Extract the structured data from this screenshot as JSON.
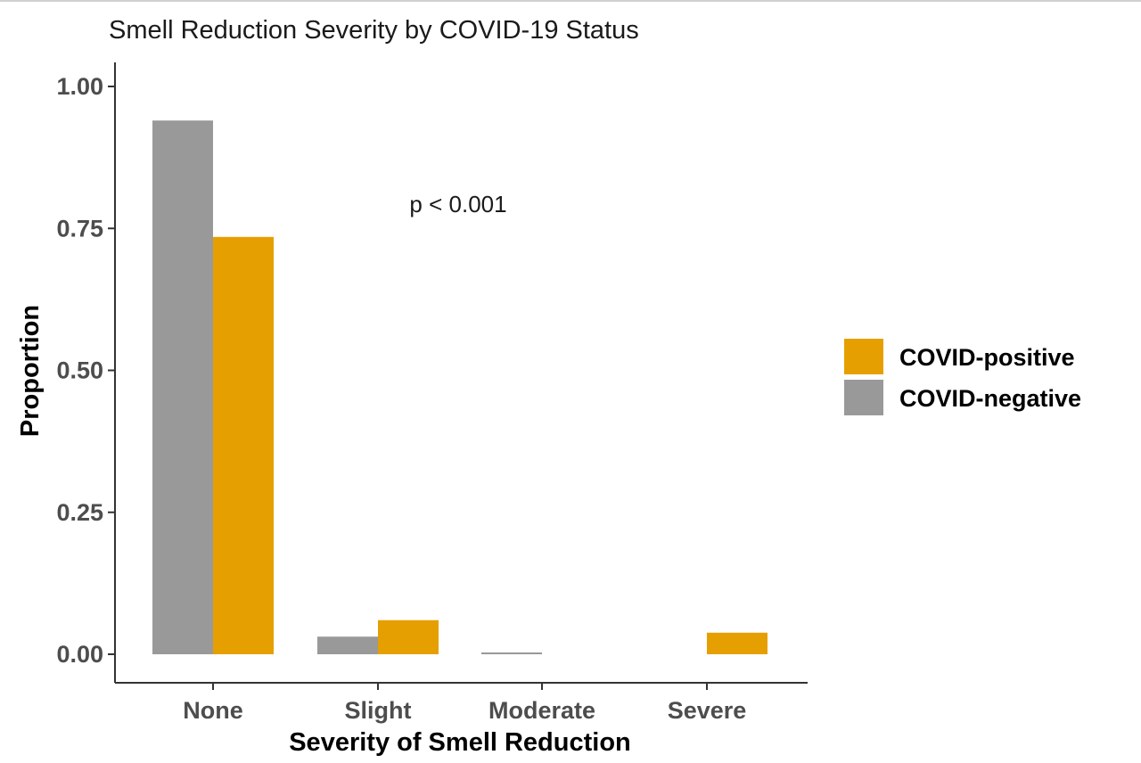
{
  "chart_data": {
    "type": "bar",
    "title": "Smell Reduction Severity by COVID-19 Status",
    "xlabel": "Severity of Smell Reduction",
    "ylabel": "Proportion",
    "categories": [
      "None",
      "Slight",
      "Moderate",
      "Severe"
    ],
    "series": [
      {
        "name": "COVID-negative",
        "color": "#999999",
        "values": [
          0.94,
          0.031,
          0.003,
          0.0
        ]
      },
      {
        "name": "COVID-positive",
        "color": "#E69F00",
        "values": [
          0.735,
          0.06,
          0.0,
          0.038
        ]
      }
    ],
    "ylim": [
      0,
      1
    ],
    "yticks": [
      "0.00",
      "0.25",
      "0.50",
      "0.75",
      "1.00"
    ],
    "annotation": "p < 0.001",
    "legend": {
      "position": "right",
      "order": [
        "COVID-positive",
        "COVID-negative"
      ]
    },
    "grid": false
  }
}
